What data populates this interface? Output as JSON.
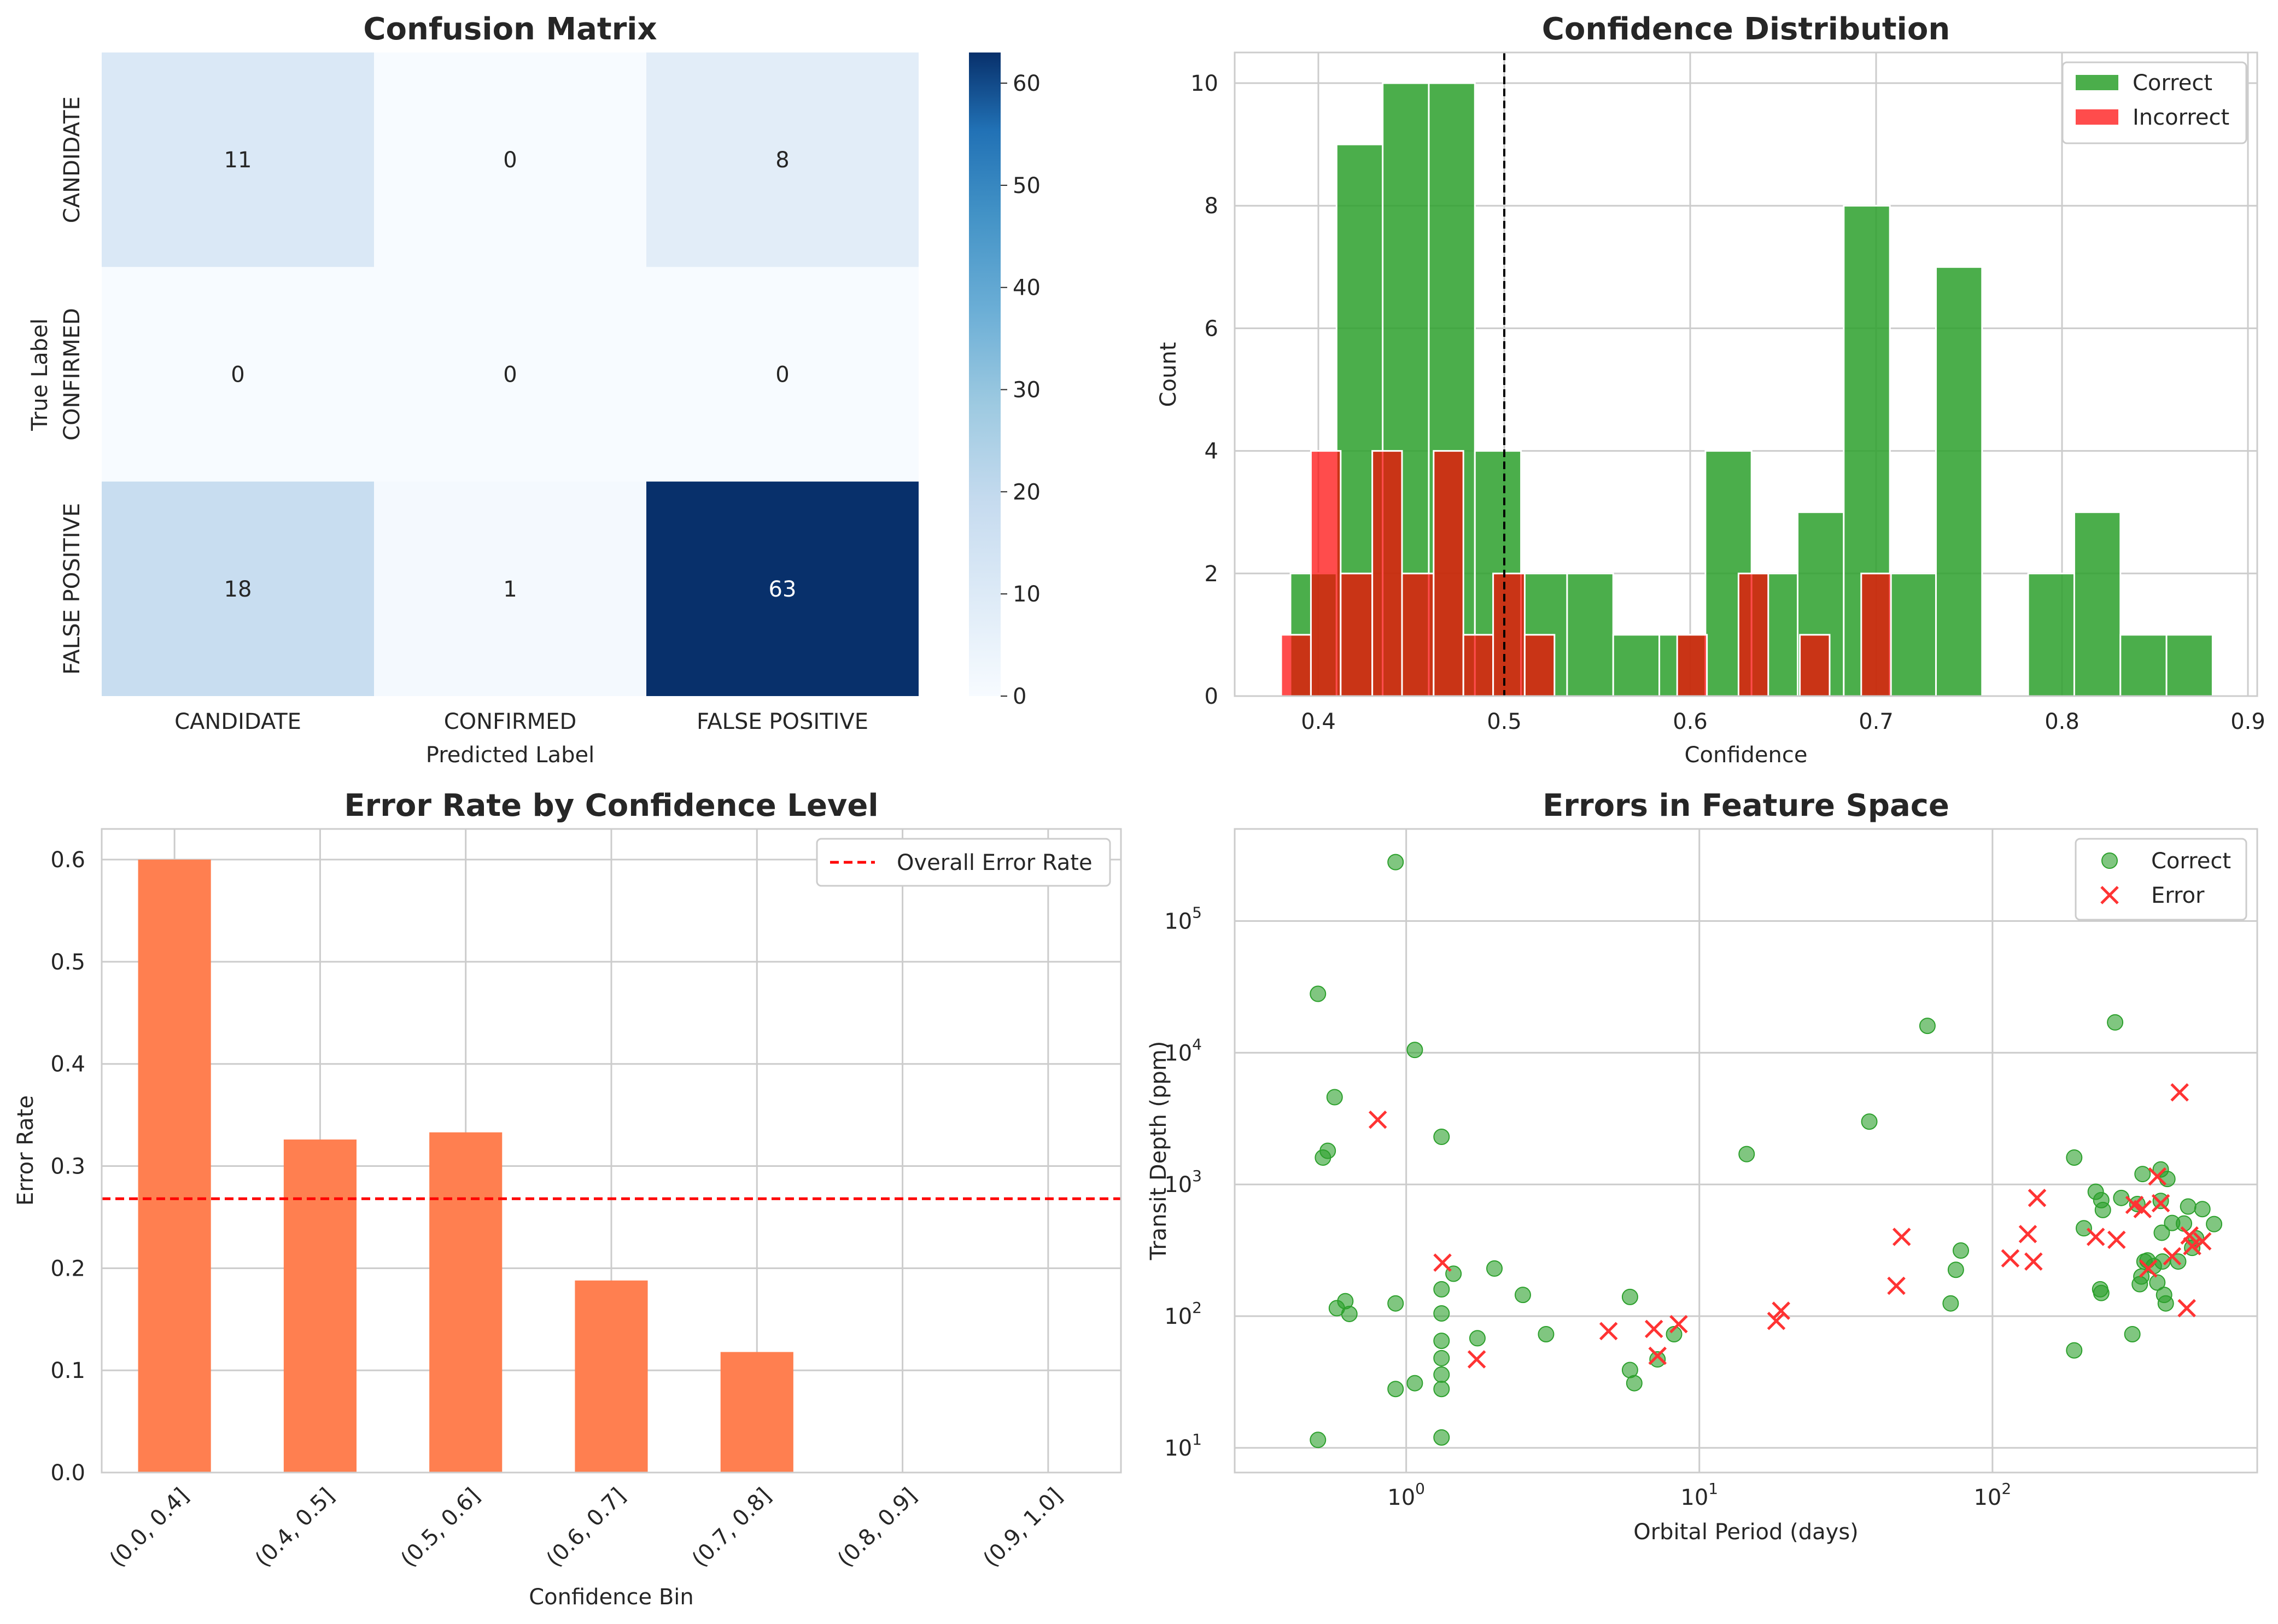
{
  "colors": {
    "correct": "#2ca02c",
    "incorrect": "#ff0000",
    "error_marker": "#ff3333",
    "bar": "#ff7f50",
    "overall_line": "#ff0000",
    "grid": "#cccccc",
    "cmap_low": "#f7fbff",
    "cmap_high": "#08306b"
  },
  "chart_data": [
    {
      "type": "heatmap",
      "title": "Confusion Matrix",
      "xlabel": "Predicted Label",
      "ylabel": "True Label",
      "x_categories": [
        "CANDIDATE",
        "CONFIRMED",
        "FALSE POSITIVE"
      ],
      "y_categories": [
        "CANDIDATE",
        "CONFIRMED",
        "FALSE POSITIVE"
      ],
      "values": [
        [
          11,
          0,
          8
        ],
        [
          0,
          0,
          0
        ],
        [
          18,
          1,
          63
        ]
      ],
      "colorbar": {
        "range": [
          0,
          63
        ],
        "ticks": [
          "0",
          "10",
          "20",
          "30",
          "40",
          "50",
          "60"
        ]
      },
      "colormap": "Blues"
    },
    {
      "type": "bar",
      "title": "Confidence Distribution",
      "xlabel": "Confidence",
      "ylabel": "Count",
      "xlim": [
        0.355,
        0.905
      ],
      "ylim": [
        0,
        10.5
      ],
      "x_ticks": [
        "0.4",
        "0.5",
        "0.6",
        "0.7",
        "0.8",
        "0.9"
      ],
      "y_ticks": [
        "0",
        "2",
        "4",
        "6",
        "8",
        "10"
      ],
      "threshold": 0.5,
      "legend": {
        "position": "top-right",
        "items": [
          "Correct",
          "Incorrect"
        ]
      },
      "series": [
        {
          "name": "Correct",
          "bins": [
            [
              0.385,
              0.4098,
              2
            ],
            [
              0.4098,
              0.4346,
              9
            ],
            [
              0.4346,
              0.4594,
              10
            ],
            [
              0.4594,
              0.4842,
              10
            ],
            [
              0.4842,
              0.509,
              4
            ],
            [
              0.509,
              0.5338,
              2
            ],
            [
              0.5338,
              0.5586,
              2
            ],
            [
              0.5586,
              0.5834,
              1
            ],
            [
              0.5834,
              0.6082,
              1
            ],
            [
              0.6082,
              0.633,
              4
            ],
            [
              0.633,
              0.6578,
              2
            ],
            [
              0.6578,
              0.6826,
              3
            ],
            [
              0.6826,
              0.7074,
              8
            ],
            [
              0.7074,
              0.7322,
              2
            ],
            [
              0.7322,
              0.757,
              7
            ],
            [
              0.7818,
              0.8066,
              2
            ],
            [
              0.8066,
              0.8314,
              3
            ],
            [
              0.8314,
              0.8562,
              1
            ],
            [
              0.8562,
              0.881,
              1
            ]
          ]
        },
        {
          "name": "Incorrect",
          "bins": [
            [
              0.38,
              0.396,
              1
            ],
            [
              0.396,
              0.412,
              4
            ],
            [
              0.412,
              0.429,
              2
            ],
            [
              0.429,
              0.445,
              4
            ],
            [
              0.445,
              0.462,
              2
            ],
            [
              0.462,
              0.478,
              4
            ],
            [
              0.478,
              0.494,
              1
            ],
            [
              0.494,
              0.511,
              2
            ],
            [
              0.511,
              0.527,
              1
            ],
            [
              0.593,
              0.609,
              1
            ],
            [
              0.626,
              0.642,
              2
            ],
            [
              0.659,
              0.675,
              1
            ],
            [
              0.692,
              0.708,
              2
            ]
          ]
        }
      ]
    },
    {
      "type": "bar",
      "title": "Error Rate by Confidence Level",
      "xlabel": "Confidence Bin",
      "ylabel": "Error Rate",
      "categories": [
        "(0.0, 0.4]",
        "(0.4, 0.5]",
        "(0.5, 0.6]",
        "(0.6, 0.7]",
        "(0.7, 0.8]",
        "(0.8, 0.9]",
        "(0.9, 1.0]"
      ],
      "values": [
        0.6,
        0.326,
        0.333,
        0.188,
        0.118,
        0,
        0
      ],
      "ylim": [
        0,
        0.63
      ],
      "y_ticks": [
        "0.0",
        "0.1",
        "0.2",
        "0.3",
        "0.4",
        "0.5",
        "0.6"
      ],
      "overall_error_rate": 0.268,
      "legend": {
        "position": "top-right",
        "items": [
          "Overall Error Rate"
        ]
      }
    },
    {
      "type": "scatter",
      "title": "Errors in Feature Space",
      "xlabel": "Orbital Period (days)",
      "ylabel": "Transit Depth (ppm)",
      "x_scale": "log",
      "y_scale": "log",
      "xlim": [
        0.26,
        800
      ],
      "ylim": [
        6.5,
        500000
      ],
      "x_ticks": [
        {
          "base": "10",
          "exp": "0"
        },
        {
          "base": "10",
          "exp": "1"
        },
        {
          "base": "10",
          "exp": "2"
        }
      ],
      "y_ticks": [
        {
          "base": "10",
          "exp": "1"
        },
        {
          "base": "10",
          "exp": "2"
        },
        {
          "base": "10",
          "exp": "3"
        },
        {
          "base": "10",
          "exp": "4"
        },
        {
          "base": "10",
          "exp": "5"
        }
      ],
      "legend": {
        "position": "top-right",
        "items": [
          "Correct",
          "Error"
        ]
      },
      "series": [
        {
          "name": "Correct",
          "marker": "circle",
          "points": [
            [
              0.5,
              11.5
            ],
            [
              0.5,
              28000
            ],
            [
              0.52,
              1600
            ],
            [
              0.54,
              1800
            ],
            [
              0.57,
              4600
            ],
            [
              0.58,
              115
            ],
            [
              0.62,
              130
            ],
            [
              0.64,
              104
            ],
            [
              0.92,
              280000
            ],
            [
              0.92,
              28
            ],
            [
              0.92,
              125
            ],
            [
              1.07,
              10500
            ],
            [
              1.07,
              31
            ],
            [
              1.32,
              2300
            ],
            [
              1.32,
              160
            ],
            [
              1.32,
              105
            ],
            [
              1.32,
              65
            ],
            [
              1.32,
              48
            ],
            [
              1.32,
              36
            ],
            [
              1.32,
              28
            ],
            [
              1.32,
              12
            ],
            [
              1.45,
              210
            ],
            [
              1.75,
              68
            ],
            [
              2.0,
              230
            ],
            [
              2.5,
              145
            ],
            [
              3.0,
              73
            ],
            [
              5.8,
              140
            ],
            [
              5.8,
              39
            ],
            [
              6.0,
              31
            ],
            [
              7.2,
              47
            ],
            [
              8.2,
              73
            ],
            [
              14.5,
              1700
            ],
            [
              38,
              3000
            ],
            [
              60,
              16000
            ],
            [
              72,
              125
            ],
            [
              75,
              225
            ],
            [
              78,
              315
            ],
            [
              190,
              55
            ],
            [
              190,
              1600
            ],
            [
              205,
              465
            ],
            [
              225,
              880
            ],
            [
              233,
              160
            ],
            [
              235,
              150
            ],
            [
              235,
              760
            ],
            [
              238,
              640
            ],
            [
              262,
              17000
            ],
            [
              275,
              790
            ],
            [
              300,
              73
            ],
            [
              312,
              710
            ],
            [
              318,
              175
            ],
            [
              322,
              200
            ],
            [
              325,
              1200
            ],
            [
              330,
              260
            ],
            [
              338,
              265
            ],
            [
              355,
              240
            ],
            [
              365,
              180
            ],
            [
              375,
              750
            ],
            [
              375,
              1300
            ],
            [
              378,
              430
            ],
            [
              380,
              260
            ],
            [
              385,
              145
            ],
            [
              390,
              125
            ],
            [
              395,
              1100
            ],
            [
              410,
              510
            ],
            [
              430,
              260
            ],
            [
              450,
              505
            ],
            [
              465,
              680
            ],
            [
              480,
              330
            ],
            [
              495,
              390
            ],
            [
              520,
              650
            ],
            [
              570,
              500
            ]
          ]
        },
        {
          "name": "Error",
          "marker": "x",
          "points": [
            [
              0.8,
              3100
            ],
            [
              1.33,
              255
            ],
            [
              1.74,
              47
            ],
            [
              4.9,
              77
            ],
            [
              7.0,
              80
            ],
            [
              7.2,
              50
            ],
            [
              8.5,
              87
            ],
            [
              18.3,
              92
            ],
            [
              19.0,
              110
            ],
            [
              47,
              170
            ],
            [
              49,
              400
            ],
            [
              115,
              275
            ],
            [
              132,
              420
            ],
            [
              138,
              260
            ],
            [
              142,
              790
            ],
            [
              225,
              400
            ],
            [
              265,
              380
            ],
            [
              305,
              700
            ],
            [
              325,
              650
            ],
            [
              340,
              230
            ],
            [
              365,
              1150
            ],
            [
              375,
              720
            ],
            [
              410,
              285
            ],
            [
              435,
              5000
            ],
            [
              460,
              115
            ],
            [
              470,
              410
            ],
            [
              480,
              340
            ],
            [
              520,
              370
            ]
          ]
        }
      ]
    }
  ]
}
